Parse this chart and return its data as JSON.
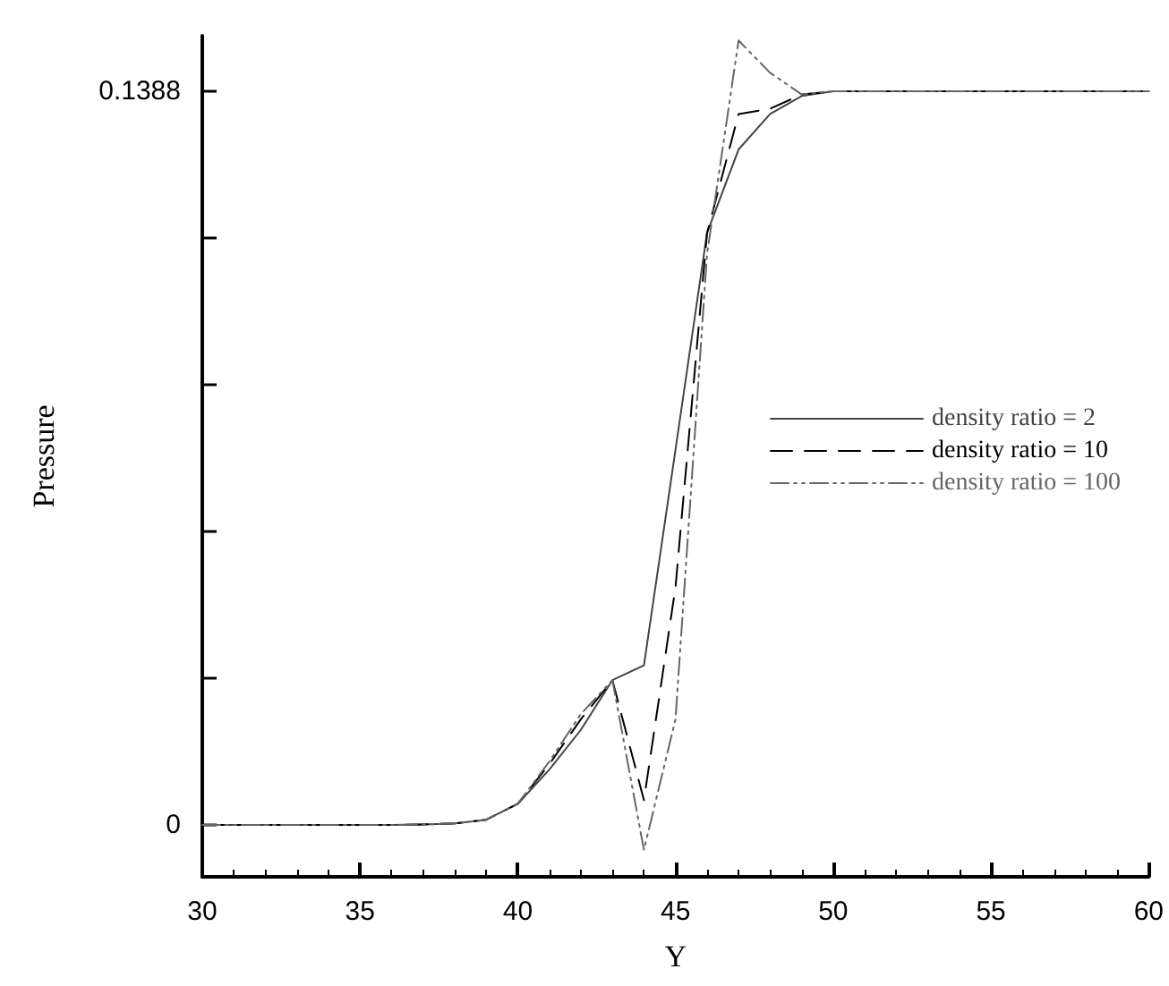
{
  "chart_data": {
    "type": "line",
    "xlabel": "Y",
    "ylabel": "Pressure",
    "x": [
      30,
      31,
      32,
      33,
      34,
      35,
      36,
      37,
      38,
      39,
      40,
      41,
      42,
      43,
      44,
      45,
      46,
      47,
      48,
      49,
      50,
      51,
      52,
      53,
      54,
      55,
      56,
      57,
      58,
      59,
      60
    ],
    "series": [
      {
        "name": "density ratio = 2",
        "color": "#444444",
        "line_style": "solid",
        "values": [
          0,
          0,
          0,
          0,
          0,
          0,
          0,
          0.0001,
          0.0003,
          0.001,
          0.004,
          0.0105,
          0.018,
          0.0274,
          0.0302,
          0.071,
          0.112,
          0.1278,
          0.1345,
          0.1379,
          0.1388,
          0.1388,
          0.1388,
          0.1388,
          0.1388,
          0.1388,
          0.1388,
          0.1388,
          0.1388,
          0.1388,
          0.1388
        ]
      },
      {
        "name": "density ratio = 10",
        "color": "#000000",
        "line_style": "dashed",
        "values": [
          0,
          0,
          0,
          0,
          0,
          0,
          0,
          0.0001,
          0.0003,
          0.001,
          0.004,
          0.0115,
          0.02,
          0.0274,
          0.0047,
          0.045,
          0.112,
          0.1345,
          0.1355,
          0.1382,
          0.1388,
          0.1388,
          0.1388,
          0.1388,
          0.1388,
          0.1388,
          0.1388,
          0.1388,
          0.1388,
          0.1388,
          0.1388
        ]
      },
      {
        "name": "density ratio = 100",
        "color": "#666666",
        "line_style": "dotted",
        "values": [
          0,
          0,
          0,
          0,
          0,
          0,
          0,
          0.0001,
          0.0003,
          0.001,
          0.004,
          0.012,
          0.021,
          0.0274,
          -0.0047,
          0.02,
          0.108,
          0.1484,
          0.1423,
          0.1382,
          0.1388,
          0.1388,
          0.1388,
          0.1388,
          0.1388,
          0.1388,
          0.1388,
          0.1388,
          0.1388,
          0.1388,
          0.1388
        ]
      }
    ],
    "xlim": [
      30,
      60
    ],
    "xticks": [
      30,
      35,
      40,
      45,
      50,
      55,
      60
    ],
    "ylim": [
      -0.0098,
      0.1493
    ],
    "yticks": [
      {
        "value": 0,
        "label": "0"
      },
      {
        "value": 0.02776,
        "label": null
      },
      {
        "value": 0.05552,
        "label": null
      },
      {
        "value": 0.08328,
        "label": null
      },
      {
        "value": 0.11104,
        "label": null
      },
      {
        "value": 0.1388,
        "label": "0.1388"
      }
    ],
    "grid": false,
    "legend": "right",
    "marker": "none"
  }
}
